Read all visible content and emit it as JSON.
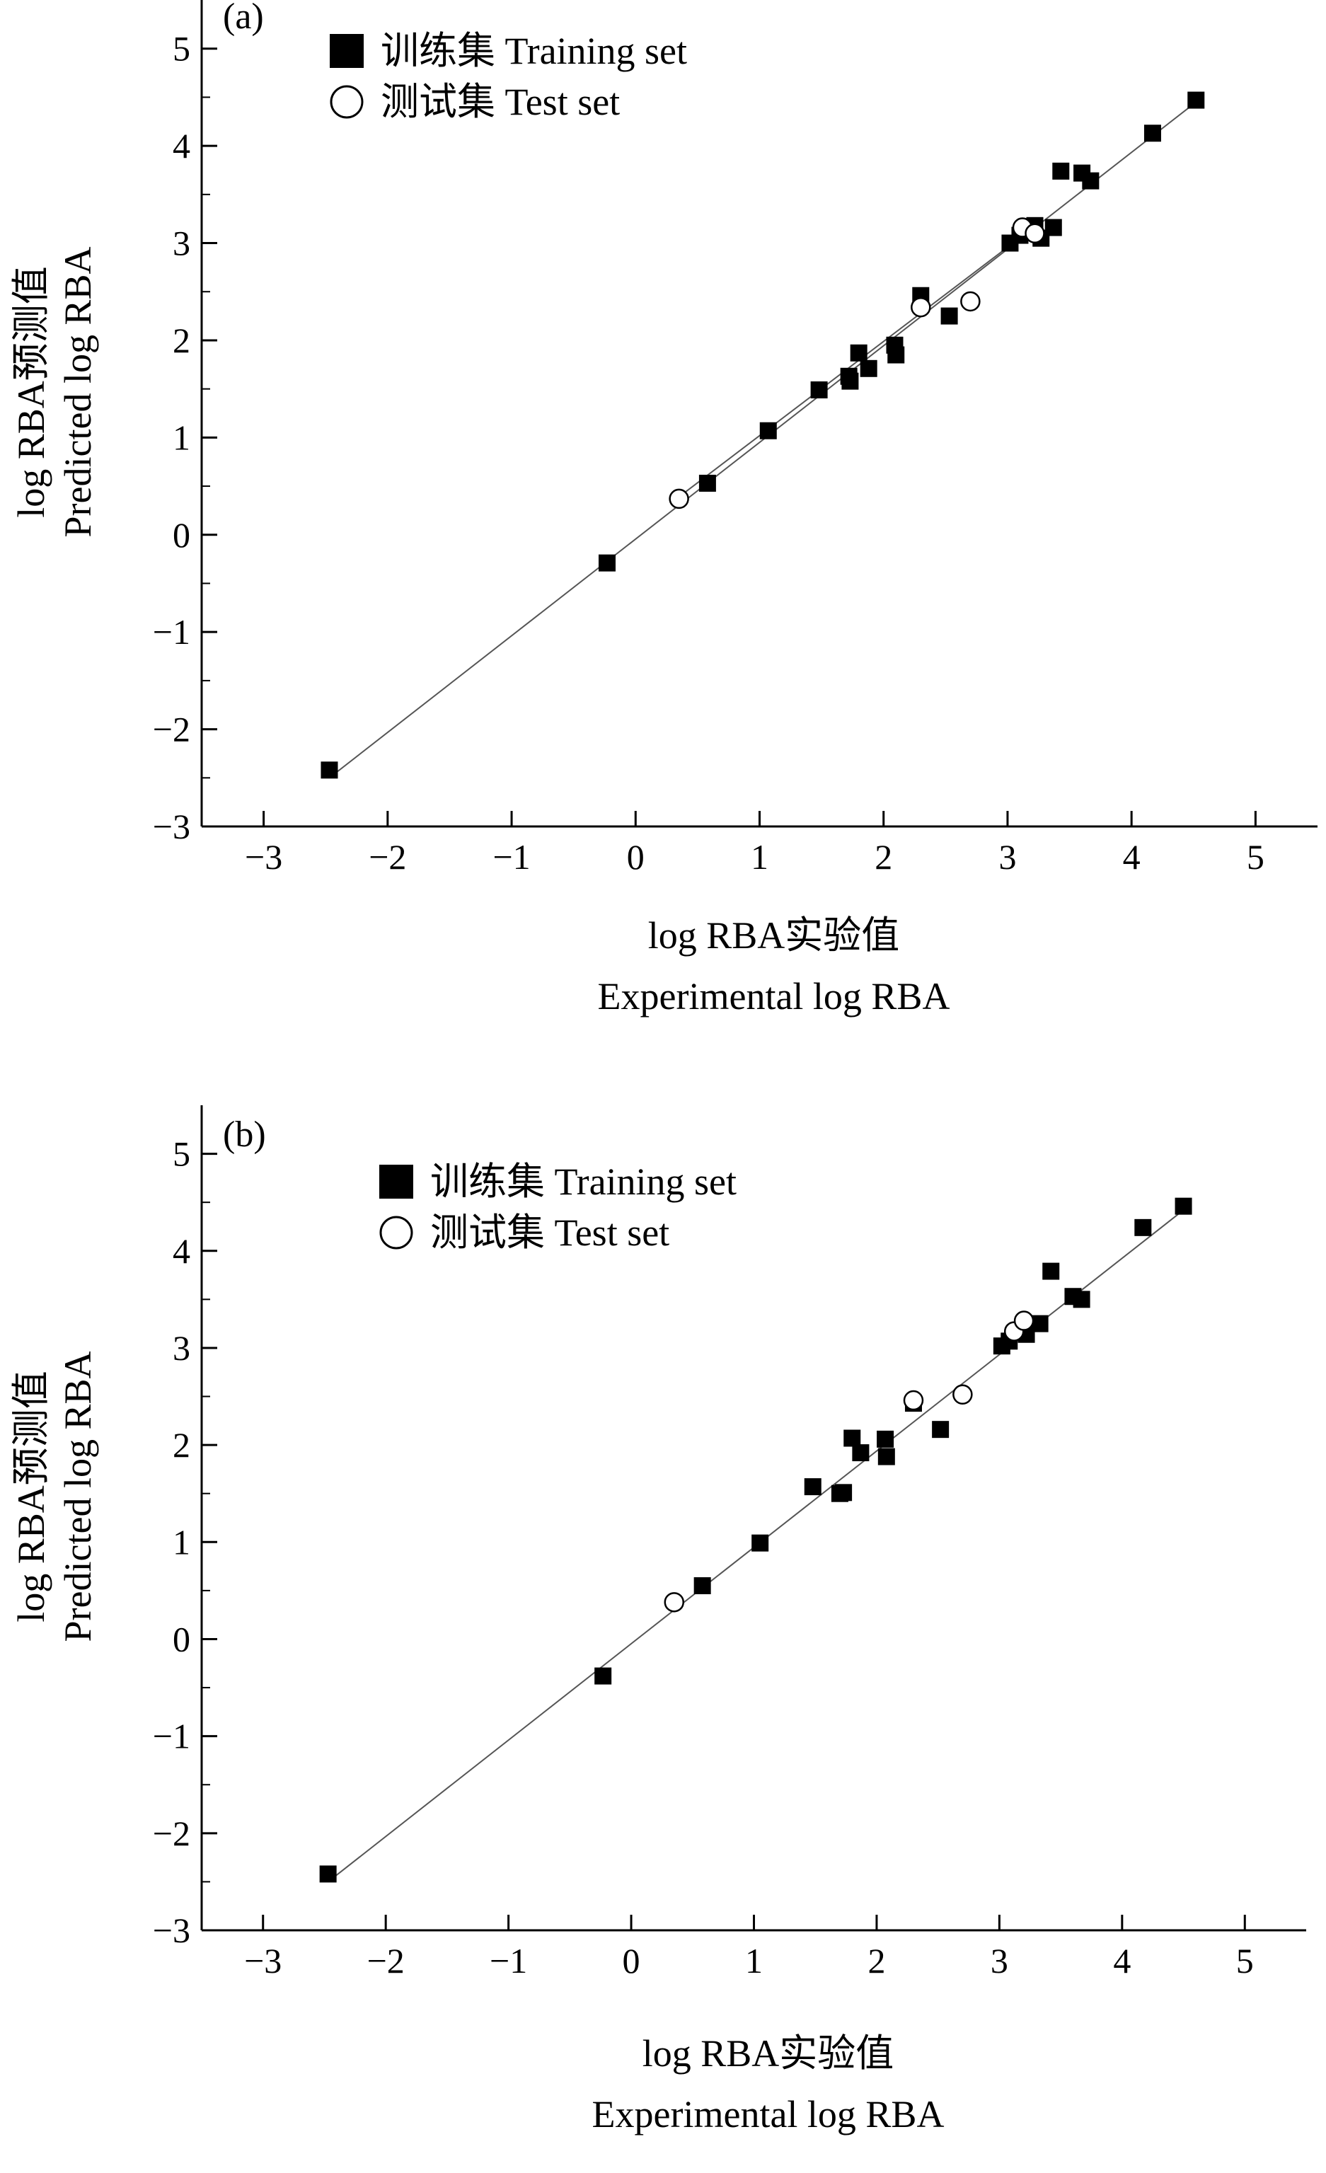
{
  "chart_data": [
    {
      "type": "scatter",
      "panel_label": "(a)",
      "xlabel_cn": "log RBA实验值",
      "xlabel_en": "Experimental log RBA",
      "ylabel_cn": "log RBA预测值",
      "ylabel_en": "Predicted log RBA",
      "xlim": [
        -3.5,
        5.5
      ],
      "ylim": [
        -3,
        5.5
      ],
      "xticks": [
        -3,
        -2,
        -1,
        0,
        1,
        2,
        3,
        4,
        5
      ],
      "yticks": [
        -3,
        -2,
        -1,
        0,
        1,
        2,
        3,
        4,
        5
      ],
      "xtick_labels": [
        "−3",
        "−2",
        "−1",
        "0",
        "1",
        "2",
        "3",
        "4",
        "5"
      ],
      "ytick_labels": [
        "−3",
        "−2",
        "−1",
        "0",
        "1",
        "2",
        "3",
        "4",
        "5"
      ],
      "legend": {
        "position": "top-left",
        "training_label": "训练集 Training set",
        "test_label": "测试集 Test set"
      },
      "series": [
        {
          "name": "训练集 Training set",
          "marker": "filled-square",
          "points": [
            [
              -2.47,
              -2.42
            ],
            [
              -0.23,
              -0.29
            ],
            [
              0.58,
              0.53
            ],
            [
              1.07,
              1.07
            ],
            [
              1.48,
              1.49
            ],
            [
              1.72,
              1.63
            ],
            [
              1.73,
              1.58
            ],
            [
              1.8,
              1.87
            ],
            [
              1.88,
              1.71
            ],
            [
              2.09,
              1.95
            ],
            [
              2.1,
              1.85
            ],
            [
              2.3,
              2.46
            ],
            [
              2.53,
              2.25
            ],
            [
              3.02,
              3.0
            ],
            [
              3.1,
              3.08
            ],
            [
              3.22,
              3.18
            ],
            [
              3.27,
              3.05
            ],
            [
              3.37,
              3.16
            ],
            [
              3.43,
              3.74
            ],
            [
              3.6,
              3.72
            ],
            [
              3.67,
              3.64
            ],
            [
              4.17,
              4.13
            ],
            [
              4.52,
              4.47
            ]
          ]
        },
        {
          "name": "测试集 Test set",
          "marker": "open-circle",
          "points": [
            [
              0.35,
              0.37
            ],
            [
              2.3,
              2.34
            ],
            [
              2.7,
              2.4
            ],
            [
              3.12,
              3.16
            ],
            [
              3.22,
              3.1
            ]
          ]
        }
      ],
      "fit_lines": [
        {
          "x": [
            -2.47,
            4.52
          ],
          "y": [
            -2.5,
            4.45
          ]
        },
        {
          "x": [
            0.35,
            3.22
          ],
          "y": [
            0.39,
            3.17
          ]
        }
      ]
    },
    {
      "type": "scatter",
      "panel_label": "(b)",
      "xlabel_cn": "log RBA实验值",
      "xlabel_en": "Experimental log RBA",
      "ylabel_cn": "log RBA预测值",
      "ylabel_en": "Predicted log RBA",
      "xlim": [
        -3.5,
        5.5
      ],
      "ylim": [
        -3,
        5.5
      ],
      "xticks": [
        -3,
        -2,
        -1,
        0,
        1,
        2,
        3,
        4,
        5
      ],
      "yticks": [
        -3,
        -2,
        -1,
        0,
        1,
        2,
        3,
        4,
        5
      ],
      "xtick_labels": [
        "−3",
        "−2",
        "−1",
        "0",
        "1",
        "2",
        "3",
        "4",
        "5"
      ],
      "ytick_labels": [
        "−3",
        "−2",
        "−1",
        "0",
        "1",
        "2",
        "3",
        "4",
        "5"
      ],
      "legend": {
        "position": "top-left",
        "training_label": "训练集 Training set",
        "test_label": "测试集 Test set"
      },
      "series": [
        {
          "name": "训练集 Training set",
          "marker": "filled-square",
          "points": [
            [
              -2.47,
              -2.42
            ],
            [
              -0.23,
              -0.38
            ],
            [
              0.58,
              0.55
            ],
            [
              1.05,
              0.99
            ],
            [
              1.48,
              1.57
            ],
            [
              1.7,
              1.5
            ],
            [
              1.73,
              1.51
            ],
            [
              1.8,
              2.07
            ],
            [
              1.87,
              1.92
            ],
            [
              2.07,
              2.06
            ],
            [
              2.08,
              1.88
            ],
            [
              2.3,
              2.43
            ],
            [
              2.52,
              2.16
            ],
            [
              3.02,
              3.02
            ],
            [
              3.08,
              3.07
            ],
            [
              3.22,
              3.14
            ],
            [
              3.33,
              3.25
            ],
            [
              3.42,
              3.79
            ],
            [
              3.6,
              3.53
            ],
            [
              3.67,
              3.5
            ],
            [
              4.17,
              4.24
            ],
            [
              4.5,
              4.46
            ]
          ]
        },
        {
          "name": "测试集 Test set",
          "marker": "open-circle",
          "points": [
            [
              0.35,
              0.38
            ],
            [
              2.3,
              2.46
            ],
            [
              2.7,
              2.52
            ],
            [
              3.12,
              3.17
            ],
            [
              3.2,
              3.28
            ]
          ]
        }
      ],
      "fit_lines": [
        {
          "x": [
            -2.47,
            4.5
          ],
          "y": [
            -2.5,
            4.42
          ]
        }
      ]
    }
  ]
}
